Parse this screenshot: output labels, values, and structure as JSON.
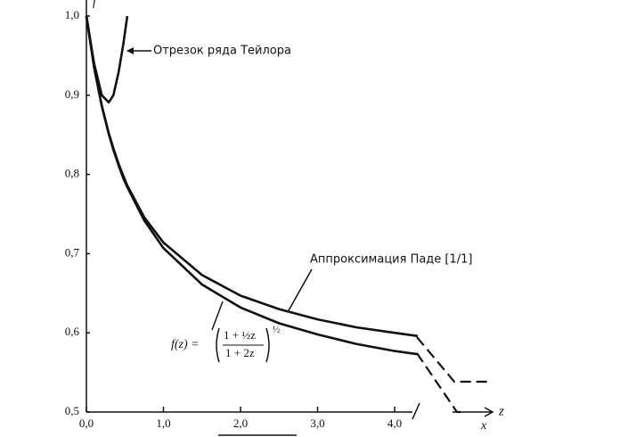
{
  "chart_data": {
    "type": "line",
    "x": [
      0,
      0.1,
      0.2,
      0.29,
      0.35,
      0.42,
      0.48,
      0.53,
      0.75,
      1,
      1.5,
      2,
      2.5,
      3,
      3.5,
      4,
      4.3
    ],
    "series": [
      {
        "color": "#111111",
        "values": [
          1.0,
          0.935,
          0.886,
          0.851,
          0.831,
          0.811,
          0.795,
          0.784,
          0.742,
          0.707,
          0.661,
          0.632,
          0.612,
          0.598,
          0.586,
          0.577,
          0.573
        ]
      },
      {
        "color": "#111111",
        "values": [
          1.0,
          0.935,
          0.887,
          0.852,
          0.833,
          0.813,
          0.798,
          0.786,
          0.746,
          0.714,
          0.673,
          0.647,
          0.63,
          0.617,
          0.607,
          0.6,
          0.596
        ]
      },
      {
        "color": "#111111",
        "values": [
          1.0,
          0.94,
          0.9,
          0.891,
          0.9,
          0.93,
          0.965,
          1.0,
          null,
          null,
          null,
          null,
          null,
          null,
          null,
          null,
          null
        ]
      }
    ],
    "xlim": [
      0,
      4.3
    ],
    "ylim": [
      0.5,
      1.0
    ],
    "xticks": [
      {
        "value": 0,
        "label": "0,0"
      },
      {
        "value": 1,
        "label": "1,0"
      },
      {
        "value": 2,
        "label": "2,0"
      },
      {
        "value": 3,
        "label": "3,0"
      },
      {
        "value": 4,
        "label": "4,0"
      }
    ],
    "yticks": [
      {
        "value": 0.5,
        "label": "0,5"
      },
      {
        "value": 0.6,
        "label": "0,6"
      },
      {
        "value": 0.7,
        "label": "0,7"
      },
      {
        "value": 0.8,
        "label": "0,8"
      },
      {
        "value": 0.9,
        "label": "0,9"
      },
      {
        "value": 1.0,
        "label": "1,0"
      }
    ],
    "xlabel": "z",
    "xlabel_note": "x",
    "ylabel": "f",
    "annotations": [
      "Отрезок ряда Тейлора",
      "Аппроксимация Паде [1/1]"
    ],
    "formula": {
      "lhs": "f(z) =",
      "numerator": "1 + ½z",
      "denominator": "1 + 2z",
      "exponent": "½"
    }
  }
}
